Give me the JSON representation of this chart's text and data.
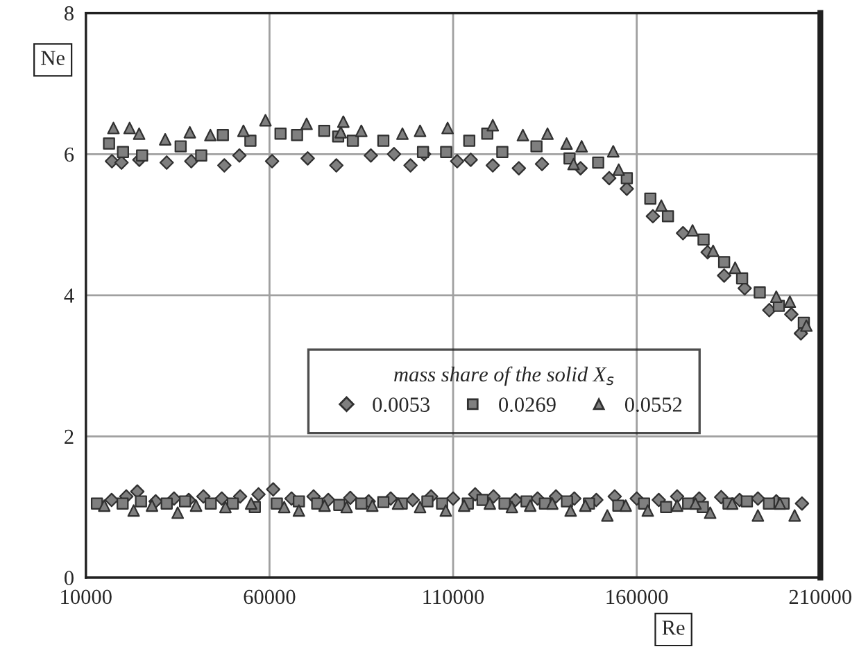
{
  "chart_data": {
    "type": "scatter",
    "xlabel": "Re",
    "ylabel": "Ne",
    "legend_title": "mass share of the solid X$_{s}$",
    "xlim": [
      10000,
      210000
    ],
    "ylim": [
      0,
      8
    ],
    "xticks": [
      10000,
      60000,
      110000,
      160000,
      210000
    ],
    "yticks": [
      0,
      2,
      4,
      6,
      8
    ],
    "grid": true,
    "legend": "right",
    "series": [
      {
        "name": "0.0053",
        "color": "#7f7f7f",
        "marker": "diamond",
        "x": [
          17087,
          19700,
          24550,
          32000,
          38700,
          47700,
          51800,
          60700,
          70400,
          78200,
          87600,
          93900,
          98400,
          102100,
          111100,
          114800,
          120800,
          127900,
          134200,
          144700,
          152500,
          157300,
          164400,
          172600,
          179300,
          183800,
          189400,
          196100,
          202100,
          204700,
          17000,
          21000,
          24000,
          29000,
          34000,
          38000,
          42000,
          47000,
          52000,
          57000,
          61000,
          66000,
          72000,
          76000,
          82000,
          87000,
          93000,
          99000,
          104000,
          110000,
          116000,
          121000,
          127000,
          133000,
          138000,
          143000,
          149000,
          154000,
          160000,
          166000,
          171000,
          177000,
          183000,
          188000,
          193000,
          198000,
          205000
        ],
        "values": [
          5.9,
          5.88,
          5.92,
          5.88,
          5.9,
          5.84,
          5.98,
          5.9,
          5.94,
          5.84,
          5.98,
          6.0,
          5.84,
          6.0,
          5.9,
          5.92,
          5.84,
          5.8,
          5.86,
          5.8,
          5.66,
          5.51,
          5.12,
          4.88,
          4.61,
          4.28,
          4.1,
          3.79,
          3.73,
          3.46,
          1.1,
          1.15,
          1.22,
          1.08,
          1.12,
          1.1,
          1.15,
          1.12,
          1.15,
          1.18,
          1.25,
          1.12,
          1.15,
          1.1,
          1.13,
          1.08,
          1.12,
          1.1,
          1.15,
          1.12,
          1.18,
          1.15,
          1.1,
          1.12,
          1.15,
          1.12,
          1.1,
          1.15,
          1.12,
          1.1,
          1.15,
          1.12,
          1.14,
          1.1,
          1.12,
          1.08,
          1.05
        ]
      },
      {
        "name": "0.0269",
        "color": "#7f7f7f",
        "marker": "square",
        "x": [
          16300,
          20100,
          25300,
          35800,
          41400,
          47300,
          54800,
          63000,
          67500,
          74900,
          78700,
          82700,
          91000,
          101800,
          108100,
          114400,
          119300,
          123400,
          132700,
          141700,
          149500,
          157300,
          163700,
          168500,
          178200,
          183800,
          188700,
          193500,
          198700,
          205500,
          13000,
          20000,
          25000,
          32000,
          37000,
          44000,
          50000,
          56000,
          62000,
          68000,
          73000,
          79000,
          85000,
          91000,
          96000,
          103000,
          107000,
          114000,
          118000,
          124000,
          130000,
          135000,
          141000,
          147000,
          155000,
          162000,
          168000,
          174000,
          178000,
          185000,
          190000,
          196000,
          200000
        ],
        "values": [
          6.15,
          6.03,
          5.98,
          6.11,
          5.98,
          6.27,
          6.19,
          6.29,
          6.27,
          6.33,
          6.25,
          6.19,
          6.19,
          6.03,
          6.03,
          6.19,
          6.29,
          6.03,
          6.11,
          5.94,
          5.88,
          5.66,
          5.37,
          5.12,
          4.79,
          4.47,
          4.24,
          4.04,
          3.85,
          3.61,
          1.05,
          1.05,
          1.08,
          1.05,
          1.08,
          1.05,
          1.05,
          1.0,
          1.05,
          1.08,
          1.05,
          1.03,
          1.05,
          1.07,
          1.05,
          1.08,
          1.05,
          1.05,
          1.1,
          1.05,
          1.08,
          1.05,
          1.08,
          1.05,
          1.02,
          1.05,
          1.0,
          1.05,
          1.0,
          1.05,
          1.08,
          1.05,
          1.05
        ]
      },
      {
        "name": "0.0552",
        "color": "#7f7f7f",
        "marker": "triangle",
        "x": [
          17500,
          21900,
          24500,
          31600,
          38300,
          43900,
          52900,
          58900,
          70100,
          79400,
          80100,
          85000,
          96200,
          101000,
          108500,
          120800,
          129000,
          135700,
          140900,
          142800,
          145000,
          153600,
          155100,
          166700,
          175200,
          180800,
          186800,
          198000,
          201700,
          206200,
          15000,
          23000,
          28000,
          35000,
          40000,
          48000,
          55000,
          64000,
          68000,
          75000,
          81000,
          88000,
          95000,
          101000,
          108000,
          113000,
          120000,
          126000,
          131000,
          137000,
          142000,
          146000,
          152000,
          157000,
          163000,
          171000,
          176000,
          180000,
          186000,
          193000,
          199000,
          203000
        ],
        "values": [
          6.37,
          6.37,
          6.29,
          6.21,
          6.31,
          6.27,
          6.33,
          6.48,
          6.43,
          6.31,
          6.46,
          6.33,
          6.29,
          6.33,
          6.37,
          6.41,
          6.27,
          6.29,
          6.15,
          5.86,
          6.11,
          6.04,
          5.78,
          5.27,
          4.92,
          4.63,
          4.39,
          3.98,
          3.91,
          3.57,
          1.02,
          0.95,
          1.02,
          0.92,
          1.02,
          1.0,
          1.05,
          1.0,
          0.95,
          1.02,
          1.0,
          1.02,
          1.05,
          1.0,
          0.95,
          1.02,
          1.05,
          1.0,
          1.02,
          1.05,
          0.95,
          1.02,
          0.88,
          1.02,
          0.95,
          1.02,
          1.05,
          0.92,
          1.05,
          0.88,
          1.05,
          0.88
        ]
      }
    ]
  }
}
